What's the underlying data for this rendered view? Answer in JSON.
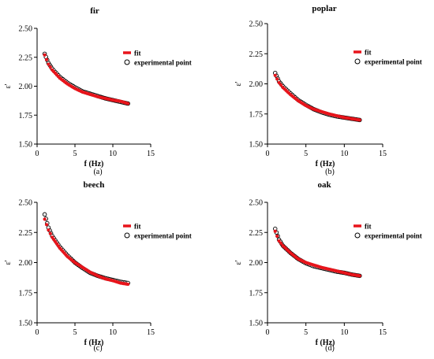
{
  "chart_data": [
    {
      "type": "scatter",
      "title": "fir",
      "xlabel": "f (Hz)",
      "ylabel": "ε'",
      "xlim": [
        0,
        15
      ],
      "ylim": [
        1.5,
        2.5
      ],
      "xticks": [
        "0",
        "5",
        "10",
        "15"
      ],
      "yticks": [
        "1.50",
        "1.75",
        "2.00",
        "2.25",
        "2.50"
      ],
      "caption": "(a)",
      "legend": [
        "fit",
        "experimental point"
      ],
      "legend_position": "top-right",
      "fit": {
        "x": [
          1,
          1.5,
          2,
          3,
          4,
          5,
          6,
          7,
          8,
          9,
          10,
          11,
          12
        ],
        "y": [
          2.27,
          2.19,
          2.14,
          2.07,
          2.02,
          1.98,
          1.95,
          1.93,
          1.91,
          1.895,
          1.88,
          1.87,
          1.85
        ]
      },
      "points": {
        "x": [
          1,
          1.5,
          2,
          3,
          4,
          5,
          6,
          7,
          8,
          9,
          10,
          11,
          12
        ],
        "y": [
          2.28,
          2.2,
          2.15,
          2.08,
          2.03,
          1.99,
          1.955,
          1.935,
          1.915,
          1.895,
          1.88,
          1.865,
          1.85
        ]
      }
    },
    {
      "type": "scatter",
      "title": "poplar",
      "xlabel": "f (Hz)",
      "ylabel": "ε'",
      "xlim": [
        0,
        15
      ],
      "ylim": [
        1.5,
        2.5
      ],
      "xticks": [
        "0",
        "5",
        "10",
        "15"
      ],
      "yticks": [
        "1.50",
        "1.75",
        "2.00",
        "2.25",
        "2.50"
      ],
      "caption": "(b)",
      "legend": [
        "fit",
        "experimental point"
      ],
      "legend_position": "top-right",
      "fit": {
        "x": [
          1,
          1.5,
          2,
          3,
          4,
          5,
          6,
          7,
          8,
          9,
          10,
          11,
          12
        ],
        "y": [
          2.07,
          2.01,
          1.97,
          1.91,
          1.86,
          1.82,
          1.79,
          1.77,
          1.75,
          1.735,
          1.72,
          1.71,
          1.7
        ]
      },
      "points": {
        "x": [
          1,
          1.5,
          2,
          3,
          4,
          5,
          6,
          7,
          8,
          9,
          10,
          11,
          12
        ],
        "y": [
          2.09,
          2.02,
          1.98,
          1.92,
          1.865,
          1.825,
          1.79,
          1.765,
          1.745,
          1.73,
          1.72,
          1.71,
          1.7
        ]
      }
    },
    {
      "type": "scatter",
      "title": "beech",
      "xlabel": "f (Hz)",
      "ylabel": "ε'",
      "xlim": [
        0,
        15
      ],
      "ylim": [
        1.5,
        2.5
      ],
      "xticks": [
        "0",
        "5",
        "10",
        "15"
      ],
      "yticks": [
        "1.50",
        "1.75",
        "2.00",
        "2.25",
        "2.50"
      ],
      "caption": "(c)",
      "legend": [
        "fit",
        "experimental point"
      ],
      "legend_position": "top-right",
      "fit": {
        "x": [
          1,
          1.5,
          2,
          3,
          4,
          5,
          6,
          7,
          8,
          9,
          10,
          11,
          12
        ],
        "y": [
          2.36,
          2.27,
          2.21,
          2.12,
          2.05,
          2.0,
          1.96,
          1.92,
          1.89,
          1.865,
          1.85,
          1.83,
          1.82
        ]
      },
      "points": {
        "x": [
          1,
          1.5,
          2,
          3,
          4,
          5,
          6,
          7,
          8,
          9,
          10,
          11,
          12
        ],
        "y": [
          2.4,
          2.29,
          2.22,
          2.13,
          2.06,
          2.0,
          1.955,
          1.915,
          1.89,
          1.87,
          1.855,
          1.84,
          1.83
        ]
      }
    },
    {
      "type": "scatter",
      "title": "oak",
      "xlabel": "f (Hz)",
      "ylabel": "ε'",
      "xlim": [
        0,
        15
      ],
      "ylim": [
        1.5,
        2.5
      ],
      "xticks": [
        "0",
        "5",
        "10",
        "15"
      ],
      "yticks": [
        "1.50",
        "1.75",
        "2.00",
        "2.25",
        "2.50"
      ],
      "caption": "(d)",
      "legend": [
        "fit",
        "experimental point"
      ],
      "legend_position": "top-right",
      "fit": {
        "x": [
          1,
          1.5,
          2,
          3,
          4,
          5,
          6,
          7,
          8,
          9,
          10,
          11,
          12
        ],
        "y": [
          2.26,
          2.18,
          2.14,
          2.08,
          2.03,
          2.0,
          1.98,
          1.96,
          1.945,
          1.93,
          1.915,
          1.9,
          1.89
        ]
      },
      "points": {
        "x": [
          1,
          1.5,
          2,
          3,
          4,
          5,
          6,
          7,
          8,
          9,
          10,
          11,
          12
        ],
        "y": [
          2.28,
          2.19,
          2.14,
          2.08,
          2.03,
          1.995,
          1.97,
          1.955,
          1.94,
          1.925,
          1.915,
          1.9,
          1.89
        ]
      }
    }
  ],
  "colors": {
    "fit": "#e8141b",
    "points_edge": "#000000",
    "points_fill": "#ffffff",
    "axis": "#000000"
  }
}
